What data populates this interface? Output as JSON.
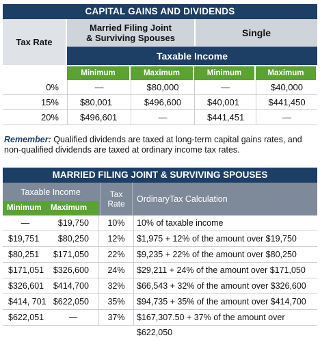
{
  "section1": {
    "title": "CAPITAL GAINS AND DIVIDENDS",
    "tax_rate_label": "Tax Rate",
    "mfj_line1": "Married Filing Joint",
    "mfj_line2": "& Surviving Spouses",
    "single_label": "Single",
    "taxable_income_label": "Taxable Income",
    "sub_headers": [
      "Minimum",
      "Maximum",
      "Minimum",
      "Maximum"
    ],
    "rows": [
      {
        "rate": "0%",
        "mfj_min": "—",
        "mfj_max": "$80,000",
        "single_min": "—",
        "single_max": "$40,000"
      },
      {
        "rate": "15%",
        "mfj_min": "$80,001",
        "mfj_max": "$496,600",
        "single_min": "$40,001",
        "single_max": "$441,450"
      },
      {
        "rate": "20%",
        "mfj_min": "$496,601",
        "mfj_max": "—",
        "single_min": "$441,451",
        "single_max": "—"
      }
    ]
  },
  "note": {
    "label": "Remember:",
    "text": " Qualified dividends are taxed at long-term capital gains rates, and non-qualified dividends are taxed at ordinary income tax rates."
  },
  "section2": {
    "title": "MARRIED FILING JOINT & SURVIVING SPOUSES",
    "taxable_income_label": "Taxable Income",
    "min_label": "Minimum",
    "max_label": "Maximum",
    "tax_rate_line1": "Tax",
    "tax_rate_line2": "Rate",
    "calc_label": "OrdinaryTax Calculation",
    "rows": [
      {
        "min": "—",
        "max": "$19,750",
        "rate": "10%",
        "calc": "10% of taxable income"
      },
      {
        "min": "$19,751",
        "max": "$80,250",
        "rate": "12%",
        "calc": "$1,975 + 12% of the amount over $19,750"
      },
      {
        "min": "$80,251",
        "max": "$171,050",
        "rate": "22%",
        "calc": "$9,235 + 22% of the amount over $80,250"
      },
      {
        "min": "$171,051",
        "max": "$326,600",
        "rate": "24%",
        "calc": "$29,211 + 24% of the amount over $171,050"
      },
      {
        "min": "$326,601",
        "max": "$414,700",
        "rate": "32%",
        "calc": "$66,543 + 32% of the amount over $326,600"
      },
      {
        "min": "$414, 701",
        "max": "$622,050",
        "rate": "35%",
        "calc": "$94,735 + 35% of the amount over $414,700"
      },
      {
        "min": "$622,051",
        "max": "—",
        "rate": "37%",
        "calc": "$167,307.50 + 37% of the amount over $622,050"
      }
    ]
  },
  "colors": {
    "navy": "#1d3f66",
    "green": "#5aa232",
    "grey": "#cfd3da",
    "slate": "#7e8a9a"
  }
}
